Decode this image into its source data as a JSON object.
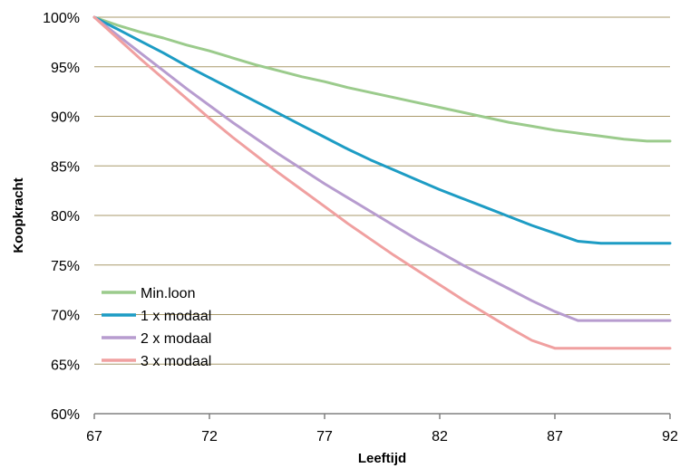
{
  "chart_data": {
    "type": "line",
    "title": "",
    "xlabel": "Leeftijd",
    "ylabel": "Koopkracht",
    "xlim": [
      67,
      92
    ],
    "ylim": [
      60,
      100
    ],
    "x_ticks": [
      67,
      72,
      77,
      82,
      87,
      92
    ],
    "y_ticks": [
      60,
      65,
      70,
      75,
      80,
      85,
      90,
      95,
      100
    ],
    "x_tick_labels": [
      "67",
      "72",
      "77",
      "82",
      "87",
      "92"
    ],
    "y_tick_labels": [
      "60%",
      "65%",
      "70%",
      "75%",
      "80%",
      "85%",
      "90%",
      "95%",
      "100%"
    ],
    "grid": "horizontal",
    "legend_position": "bottom-left",
    "x": [
      67,
      68,
      69,
      70,
      71,
      72,
      73,
      74,
      75,
      76,
      77,
      78,
      79,
      80,
      81,
      82,
      83,
      84,
      85,
      86,
      87,
      88,
      89,
      90,
      91,
      92
    ],
    "series": [
      {
        "name": "Min.loon",
        "color": "#9BCB8C",
        "values": [
          100,
          99.2,
          98.5,
          97.9,
          97.2,
          96.6,
          95.9,
          95.2,
          94.6,
          94.0,
          93.5,
          92.9,
          92.4,
          91.9,
          91.4,
          90.9,
          90.4,
          89.9,
          89.4,
          89.0,
          88.6,
          88.3,
          88.0,
          87.7,
          87.5,
          87.5
        ]
      },
      {
        "name": "1 x modaal",
        "color": "#1D9CC4",
        "values": [
          100,
          98.8,
          97.6,
          96.4,
          95.1,
          93.9,
          92.7,
          91.5,
          90.3,
          89.1,
          87.9,
          86.7,
          85.6,
          84.6,
          83.6,
          82.6,
          81.7,
          80.8,
          79.9,
          79.0,
          78.2,
          77.4,
          77.2,
          77.2,
          77.2,
          77.2
        ]
      },
      {
        "name": "2 x modaal",
        "color": "#B79CCF",
        "values": [
          100,
          98.2,
          96.4,
          94.6,
          92.8,
          91.1,
          89.4,
          87.8,
          86.2,
          84.7,
          83.2,
          81.8,
          80.4,
          79.0,
          77.6,
          76.3,
          75.0,
          73.8,
          72.6,
          71.4,
          70.3,
          69.4,
          69.4,
          69.4,
          69.4,
          69.4
        ]
      },
      {
        "name": "3 x modaal",
        "color": "#F0A0A0",
        "values": [
          100,
          97.9,
          95.8,
          93.8,
          91.8,
          89.8,
          87.9,
          86.1,
          84.3,
          82.6,
          80.9,
          79.2,
          77.6,
          76.0,
          74.5,
          73.0,
          71.5,
          70.1,
          68.7,
          67.4,
          66.6,
          66.6,
          66.6,
          66.6,
          66.6,
          66.6
        ]
      }
    ]
  }
}
